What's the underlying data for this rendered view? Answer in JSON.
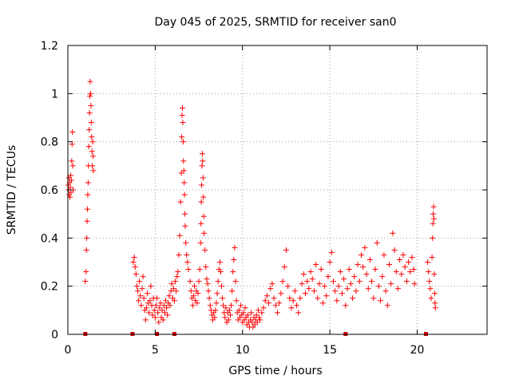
{
  "chart_data": {
    "type": "scatter",
    "title": "Day 045 of 2025, SRMTID for receiver san0",
    "xlabel": "GPS time / hours",
    "ylabel": "SRMTID / TECUs",
    "xlim": [
      0,
      24
    ],
    "ylim": [
      0,
      1.2
    ],
    "xticks": [
      0,
      5,
      10,
      15,
      20
    ],
    "xtick_labels": [
      "0",
      "5",
      "10",
      "15",
      "20"
    ],
    "yticks": [
      0,
      0.2,
      0.4,
      0.6,
      0.8,
      1.0,
      1.2
    ],
    "ytick_labels": [
      "0",
      "0.2",
      "0.4",
      "0.6",
      "0.8",
      "1",
      "1.2"
    ],
    "grid": true,
    "marker": "+",
    "color": "#ff0000",
    "gap_marker_color": "#cc0000",
    "gap_markers_x": [
      1.0,
      3.7,
      5.1,
      6.1,
      15.9,
      20.5
    ],
    "series": [
      {
        "name": "SRMTID",
        "points": [
          [
            0.02,
            0.62
          ],
          [
            0.04,
            0.6
          ],
          [
            0.06,
            0.65
          ],
          [
            0.08,
            0.58
          ],
          [
            0.1,
            0.63
          ],
          [
            0.12,
            0.57
          ],
          [
            0.14,
            0.61
          ],
          [
            0.16,
            0.66
          ],
          [
            0.18,
            0.59
          ],
          [
            0.2,
            0.64
          ],
          [
            0.22,
            0.72
          ],
          [
            0.24,
            0.79
          ],
          [
            0.26,
            0.84
          ],
          [
            0.28,
            0.7
          ],
          [
            0.3,
            0.6
          ],
          [
            1.0,
            0.22
          ],
          [
            1.04,
            0.26
          ],
          [
            1.06,
            0.35
          ],
          [
            1.08,
            0.4
          ],
          [
            1.1,
            0.47
          ],
          [
            1.12,
            0.52
          ],
          [
            1.14,
            0.58
          ],
          [
            1.16,
            0.63
          ],
          [
            1.18,
            0.7
          ],
          [
            1.2,
            0.78
          ],
          [
            1.22,
            0.85
          ],
          [
            1.24,
            0.92
          ],
          [
            1.26,
            0.99
          ],
          [
            1.28,
            1.05
          ],
          [
            1.3,
            1.0
          ],
          [
            1.32,
            0.95
          ],
          [
            1.34,
            0.88
          ],
          [
            1.36,
            0.82
          ],
          [
            1.38,
            0.76
          ],
          [
            1.4,
            0.7
          ],
          [
            1.42,
            0.8
          ],
          [
            1.44,
            0.74
          ],
          [
            1.46,
            0.68
          ],
          [
            3.75,
            0.3
          ],
          [
            3.8,
            0.32
          ],
          [
            3.85,
            0.28
          ],
          [
            3.9,
            0.25
          ],
          [
            3.95,
            0.2
          ],
          [
            4.0,
            0.18
          ],
          [
            4.05,
            0.14
          ],
          [
            4.1,
            0.22
          ],
          [
            4.15,
            0.16
          ],
          [
            4.2,
            0.12
          ],
          [
            4.25,
            0.19
          ],
          [
            4.3,
            0.24
          ],
          [
            4.35,
            0.15
          ],
          [
            4.4,
            0.1
          ],
          [
            4.45,
            0.06
          ],
          [
            4.5,
            0.11
          ],
          [
            4.55,
            0.17
          ],
          [
            4.6,
            0.13
          ],
          [
            4.65,
            0.09
          ],
          [
            4.7,
            0.14
          ],
          [
            4.75,
            0.2
          ],
          [
            4.8,
            0.12
          ],
          [
            4.85,
            0.08
          ],
          [
            4.9,
            0.15
          ],
          [
            4.95,
            0.1
          ],
          [
            5.0,
            0.07
          ],
          [
            5.05,
            0.12
          ],
          [
            5.1,
            0.15
          ],
          [
            5.15,
            0.09
          ],
          [
            5.2,
            0.05
          ],
          [
            5.25,
            0.11
          ],
          [
            5.3,
            0.13
          ],
          [
            5.35,
            0.07
          ],
          [
            5.4,
            0.1
          ],
          [
            5.45,
            0.06
          ],
          [
            5.5,
            0.12
          ],
          [
            5.55,
            0.09
          ],
          [
            5.6,
            0.14
          ],
          [
            5.65,
            0.11
          ],
          [
            5.7,
            0.08
          ],
          [
            5.75,
            0.13
          ],
          [
            5.8,
            0.16
          ],
          [
            5.85,
            0.12
          ],
          [
            5.9,
            0.18
          ],
          [
            5.95,
            0.21
          ],
          [
            6.0,
            0.15
          ],
          [
            6.05,
            0.19
          ],
          [
            6.1,
            0.14
          ],
          [
            6.15,
            0.22
          ],
          [
            6.2,
            0.18
          ],
          [
            6.25,
            0.24
          ],
          [
            6.3,
            0.26
          ],
          [
            6.35,
            0.33
          ],
          [
            6.4,
            0.41
          ],
          [
            6.45,
            0.55
          ],
          [
            6.5,
            0.67
          ],
          [
            6.52,
            0.82
          ],
          [
            6.54,
            0.91
          ],
          [
            6.56,
            0.94
          ],
          [
            6.58,
            0.88
          ],
          [
            6.6,
            0.8
          ],
          [
            6.62,
            0.72
          ],
          [
            6.64,
            0.68
          ],
          [
            6.66,
            0.63
          ],
          [
            6.68,
            0.58
          ],
          [
            6.7,
            0.5
          ],
          [
            6.72,
            0.45
          ],
          [
            6.75,
            0.38
          ],
          [
            6.8,
            0.33
          ],
          [
            6.85,
            0.3
          ],
          [
            6.9,
            0.27
          ],
          [
            7.0,
            0.22
          ],
          [
            7.05,
            0.18
          ],
          [
            7.1,
            0.15
          ],
          [
            7.15,
            0.12
          ],
          [
            7.2,
            0.16
          ],
          [
            7.25,
            0.2
          ],
          [
            7.3,
            0.14
          ],
          [
            7.35,
            0.18
          ],
          [
            7.4,
            0.13
          ],
          [
            7.45,
            0.17
          ],
          [
            7.5,
            0.22
          ],
          [
            7.55,
            0.27
          ],
          [
            7.6,
            0.38
          ],
          [
            7.62,
            0.46
          ],
          [
            7.64,
            0.55
          ],
          [
            7.66,
            0.62
          ],
          [
            7.68,
            0.7
          ],
          [
            7.7,
            0.75
          ],
          [
            7.72,
            0.72
          ],
          [
            7.74,
            0.65
          ],
          [
            7.76,
            0.57
          ],
          [
            7.78,
            0.49
          ],
          [
            7.8,
            0.42
          ],
          [
            7.85,
            0.35
          ],
          [
            7.9,
            0.28
          ],
          [
            7.95,
            0.23
          ],
          [
            8.0,
            0.21
          ],
          [
            8.05,
            0.18
          ],
          [
            8.1,
            0.15
          ],
          [
            8.15,
            0.12
          ],
          [
            8.2,
            0.1
          ],
          [
            8.25,
            0.08
          ],
          [
            8.3,
            0.06
          ],
          [
            8.35,
            0.09
          ],
          [
            8.4,
            0.07
          ],
          [
            8.45,
            0.1
          ],
          [
            8.5,
            0.13
          ],
          [
            8.55,
            0.17
          ],
          [
            8.6,
            0.22
          ],
          [
            8.65,
            0.27
          ],
          [
            8.7,
            0.3
          ],
          [
            8.75,
            0.26
          ],
          [
            8.8,
            0.2
          ],
          [
            8.85,
            0.15
          ],
          [
            8.9,
            0.12
          ],
          [
            8.95,
            0.09
          ],
          [
            9.0,
            0.07
          ],
          [
            9.05,
            0.11
          ],
          [
            9.1,
            0.05
          ],
          [
            9.15,
            0.09
          ],
          [
            9.2,
            0.06
          ],
          [
            9.25,
            0.1
          ],
          [
            9.3,
            0.08
          ],
          [
            9.35,
            0.12
          ],
          [
            9.4,
            0.18
          ],
          [
            9.45,
            0.26
          ],
          [
            9.5,
            0.31
          ],
          [
            9.55,
            0.36
          ],
          [
            9.6,
            0.22
          ],
          [
            9.65,
            0.14
          ],
          [
            9.7,
            0.09
          ],
          [
            9.75,
            0.06
          ],
          [
            9.8,
            0.1
          ],
          [
            9.85,
            0.07
          ],
          [
            9.9,
            0.12
          ],
          [
            9.95,
            0.08
          ],
          [
            10.0,
            0.05
          ],
          [
            10.05,
            0.09
          ],
          [
            10.1,
            0.06
          ],
          [
            10.15,
            0.11
          ],
          [
            10.2,
            0.07
          ],
          [
            10.25,
            0.04
          ],
          [
            10.3,
            0.08
          ],
          [
            10.35,
            0.05
          ],
          [
            10.4,
            0.03
          ],
          [
            10.45,
            0.06
          ],
          [
            10.5,
            0.09
          ],
          [
            10.55,
            0.05
          ],
          [
            10.6,
            0.03
          ],
          [
            10.65,
            0.07
          ],
          [
            10.7,
            0.04
          ],
          [
            10.75,
            0.06
          ],
          [
            10.8,
            0.08
          ],
          [
            10.85,
            0.05
          ],
          [
            10.9,
            0.1
          ],
          [
            10.95,
            0.07
          ],
          [
            11.0,
            0.06
          ],
          [
            11.1,
            0.09
          ],
          [
            11.2,
            0.11
          ],
          [
            11.3,
            0.14
          ],
          [
            11.4,
            0.16
          ],
          [
            11.5,
            0.13
          ],
          [
            11.6,
            0.19
          ],
          [
            11.7,
            0.21
          ],
          [
            11.8,
            0.15
          ],
          [
            11.9,
            0.12
          ],
          [
            12.0,
            0.09
          ],
          [
            12.1,
            0.13
          ],
          [
            12.2,
            0.17
          ],
          [
            12.3,
            0.22
          ],
          [
            12.4,
            0.28
          ],
          [
            12.5,
            0.35
          ],
          [
            12.6,
            0.2
          ],
          [
            12.7,
            0.15
          ],
          [
            12.8,
            0.11
          ],
          [
            12.9,
            0.14
          ],
          [
            13.0,
            0.18
          ],
          [
            13.1,
            0.12
          ],
          [
            13.2,
            0.09
          ],
          [
            13.3,
            0.15
          ],
          [
            13.4,
            0.21
          ],
          [
            13.5,
            0.25
          ],
          [
            13.6,
            0.17
          ],
          [
            13.7,
            0.22
          ],
          [
            13.8,
            0.19
          ],
          [
            13.9,
            0.26
          ],
          [
            14.0,
            0.23
          ],
          [
            14.1,
            0.18
          ],
          [
            14.2,
            0.29
          ],
          [
            14.3,
            0.15
          ],
          [
            14.4,
            0.21
          ],
          [
            14.5,
            0.27
          ],
          [
            14.6,
            0.13
          ],
          [
            14.7,
            0.2
          ],
          [
            14.8,
            0.16
          ],
          [
            14.9,
            0.24
          ],
          [
            15.0,
            0.3
          ],
          [
            15.1,
            0.34
          ],
          [
            15.2,
            0.22
          ],
          [
            15.3,
            0.18
          ],
          [
            15.4,
            0.14
          ],
          [
            15.5,
            0.2
          ],
          [
            15.6,
            0.26
          ],
          [
            15.7,
            0.17
          ],
          [
            15.8,
            0.23
          ],
          [
            15.9,
            0.12
          ],
          [
            16.0,
            0.19
          ],
          [
            16.1,
            0.27
          ],
          [
            16.2,
            0.21
          ],
          [
            16.3,
            0.15
          ],
          [
            16.4,
            0.24
          ],
          [
            16.5,
            0.18
          ],
          [
            16.6,
            0.29
          ],
          [
            16.7,
            0.22
          ],
          [
            16.8,
            0.33
          ],
          [
            16.9,
            0.28
          ],
          [
            17.0,
            0.36
          ],
          [
            17.1,
            0.25
          ],
          [
            17.2,
            0.19
          ],
          [
            17.3,
            0.31
          ],
          [
            17.4,
            0.22
          ],
          [
            17.5,
            0.15
          ],
          [
            17.6,
            0.27
          ],
          [
            17.7,
            0.38
          ],
          [
            17.8,
            0.2
          ],
          [
            17.9,
            0.14
          ],
          [
            18.0,
            0.24
          ],
          [
            18.1,
            0.33
          ],
          [
            18.2,
            0.18
          ],
          [
            18.3,
            0.12
          ],
          [
            18.4,
            0.29
          ],
          [
            18.5,
            0.21
          ],
          [
            18.6,
            0.42
          ],
          [
            18.7,
            0.35
          ],
          [
            18.8,
            0.26
          ],
          [
            18.9,
            0.19
          ],
          [
            19.0,
            0.31
          ],
          [
            19.1,
            0.25
          ],
          [
            19.2,
            0.33
          ],
          [
            19.3,
            0.28
          ],
          [
            19.4,
            0.22
          ],
          [
            19.5,
            0.3
          ],
          [
            19.6,
            0.26
          ],
          [
            19.7,
            0.32
          ],
          [
            19.8,
            0.27
          ],
          [
            19.85,
            0.21
          ],
          [
            20.6,
            0.3
          ],
          [
            20.65,
            0.26
          ],
          [
            20.7,
            0.22
          ],
          [
            20.75,
            0.19
          ],
          [
            20.8,
            0.15
          ],
          [
            20.85,
            0.32
          ],
          [
            20.88,
            0.4
          ],
          [
            20.9,
            0.46
          ],
          [
            20.92,
            0.5
          ],
          [
            20.94,
            0.53
          ],
          [
            20.96,
            0.48
          ],
          [
            20.98,
            0.25
          ],
          [
            21.0,
            0.17
          ],
          [
            21.02,
            0.13
          ],
          [
            21.04,
            0.11
          ]
        ]
      }
    ]
  }
}
